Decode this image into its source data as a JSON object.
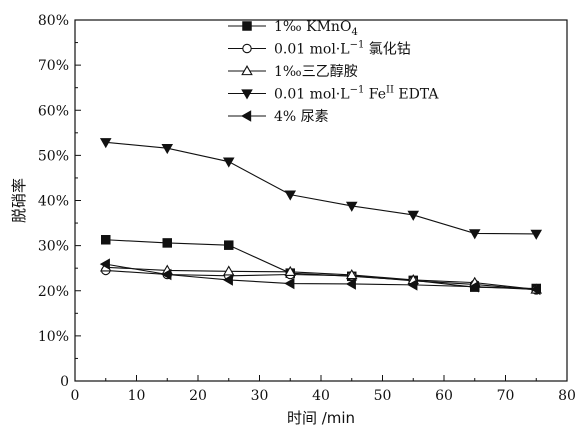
{
  "chart_data": {
    "type": "line",
    "title": "",
    "xlabel": "时间 /min",
    "ylabel": "脱硝率",
    "xlim": [
      0,
      80
    ],
    "ylim": [
      0,
      80
    ],
    "x_ticks": [
      "0",
      "10",
      "20",
      "30",
      "40",
      "50",
      "60",
      "70",
      "80"
    ],
    "y_ticks": [
      "0",
      "10%",
      "20%",
      "30%",
      "40%",
      "50%",
      "60%",
      "70%",
      "80%"
    ],
    "grid": false,
    "legend_position": "top-center",
    "x": [
      5,
      15,
      25,
      35,
      45,
      55,
      65,
      75
    ],
    "series": [
      {
        "name": "1‰ KMnO₄",
        "label": {
          "base": "1‰ KMnO",
          "sub": "4",
          "sup": "",
          "tail": ""
        },
        "marker": "square-filled",
        "values": [
          31.3,
          30.6,
          30.1,
          23.9,
          23.2,
          22.3,
          20.8,
          20.5
        ]
      },
      {
        "name": "0.01 mol·L⁻¹ 氯化钴",
        "label": {
          "base": "0.01 mol·L",
          "sub": "",
          "sup": "−1",
          "tail": " 氯化钴"
        },
        "marker": "circle-open",
        "values": [
          24.5,
          23.6,
          23.3,
          23.6,
          23.3,
          22.2,
          21.4,
          20.2
        ]
      },
      {
        "name": "1‰三乙醇胺",
        "label": {
          "base": "1‰三乙醇胺",
          "sub": "",
          "sup": "",
          "tail": ""
        },
        "marker": "triangle-up-open",
        "values": [
          25.2,
          24.5,
          24.3,
          24.2,
          23.5,
          22.4,
          21.8,
          20.3
        ]
      },
      {
        "name": "0.01 mol·L⁻¹ FeᴵᴵEDTA",
        "label": {
          "base": "0.01 mol·L",
          "sub": "",
          "sup": "−1",
          "tail": " Fe",
          "sup2": "II",
          "tail2": " EDTA"
        },
        "marker": "triangle-down-filled",
        "values": [
          52.9,
          51.6,
          48.6,
          41.3,
          38.8,
          36.8,
          32.7,
          32.6
        ]
      },
      {
        "name": "4% 尿素",
        "label": {
          "base": "4% 尿素",
          "sub": "",
          "sup": "",
          "tail": ""
        },
        "marker": "triangle-left-filled",
        "values": [
          25.9,
          23.6,
          22.4,
          21.6,
          21.5,
          21.3,
          20.9,
          20.3
        ]
      }
    ]
  }
}
